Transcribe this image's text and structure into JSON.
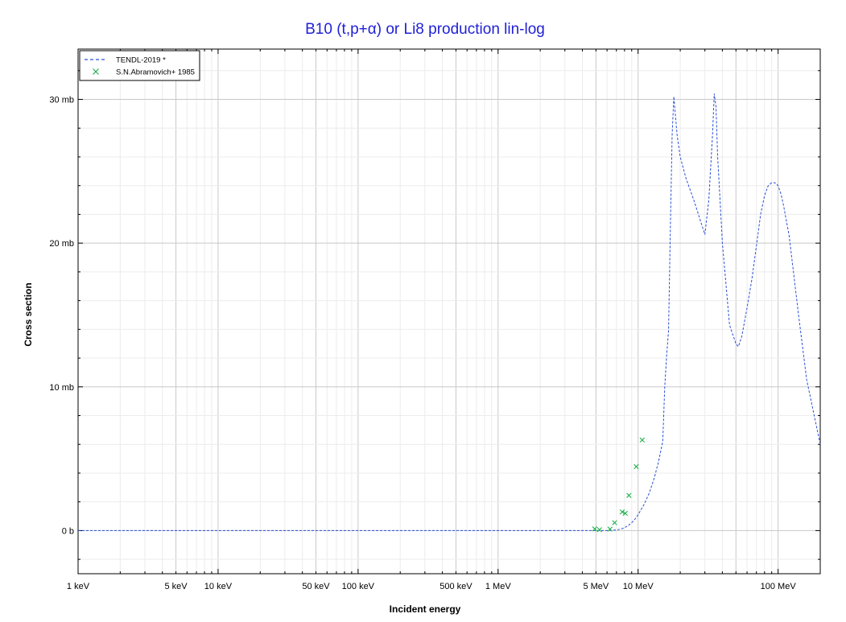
{
  "chart_data": {
    "type": "line",
    "title": "B10 (t,p+α) or Li8 production lin-log",
    "xlabel": "Incident energy",
    "ylabel": "Cross section",
    "x_scale": "log",
    "x_unit": "MeV",
    "y_unit": "mb",
    "xlim": [
      0.001,
      200
    ],
    "ylim": [
      -3.0,
      33.5
    ],
    "grid": true,
    "legend_position": "top-left",
    "x_ticks": [
      {
        "value": 0.001,
        "label": "1 keV"
      },
      {
        "value": 0.005,
        "label": "5 keV"
      },
      {
        "value": 0.01,
        "label": "10 keV"
      },
      {
        "value": 0.05,
        "label": "50 keV"
      },
      {
        "value": 0.1,
        "label": "100 keV"
      },
      {
        "value": 0.5,
        "label": "500 keV"
      },
      {
        "value": 1,
        "label": "1 MeV"
      },
      {
        "value": 5,
        "label": "5 MeV"
      },
      {
        "value": 10,
        "label": "10 MeV"
      },
      {
        "value": 100,
        "label": "100 MeV"
      }
    ],
    "y_ticks": [
      {
        "value": 0,
        "label": "0 b"
      },
      {
        "value": 10,
        "label": "10 mb"
      },
      {
        "value": 20,
        "label": "20 mb"
      },
      {
        "value": 30,
        "label": "30 mb"
      }
    ],
    "series": [
      {
        "name": "TENDL-2019 *",
        "style": "dashed-line",
        "color": "#2a4fd6",
        "x": [
          0.001,
          0.1,
          1,
          4,
          5,
          6,
          6.5,
          7,
          7.5,
          8,
          8.5,
          9,
          9.5,
          10,
          11,
          12,
          13,
          14,
          15,
          15.5,
          16,
          16.5,
          17,
          17.5,
          18,
          19,
          20,
          22,
          25,
          28,
          30,
          32,
          34,
          35,
          36,
          37,
          38,
          40,
          45,
          50,
          52,
          55,
          60,
          65,
          70,
          75,
          80,
          85,
          90,
          95,
          100,
          105,
          110,
          120,
          140,
          160,
          200
        ],
        "y": [
          0,
          0,
          0,
          0,
          0,
          0,
          0.02,
          0.05,
          0.1,
          0.2,
          0.35,
          0.55,
          0.8,
          1.1,
          1.8,
          2.6,
          3.6,
          4.8,
          6.2,
          10.0,
          12.2,
          13.9,
          21.0,
          27.5,
          30.2,
          27.5,
          26.0,
          24.5,
          23.0,
          21.5,
          20.6,
          23.0,
          27.5,
          30.4,
          29.5,
          26.0,
          24.0,
          20.0,
          14.3,
          13.0,
          12.8,
          13.5,
          15.5,
          17.5,
          19.8,
          22.0,
          23.3,
          24.0,
          24.2,
          24.2,
          24.0,
          23.4,
          22.5,
          20.5,
          15.0,
          10.5,
          6.0
        ]
      },
      {
        "name": "S.N.Abramovich+ 1985",
        "style": "markers-x",
        "color": "#22b14c",
        "x": [
          4.9,
          5.3,
          6.3,
          6.8,
          7.7,
          8.1,
          8.6,
          9.7,
          10.7
        ],
        "y": [
          0.12,
          0.06,
          0.1,
          0.55,
          1.3,
          1.2,
          2.45,
          4.45,
          6.3
        ]
      }
    ]
  }
}
